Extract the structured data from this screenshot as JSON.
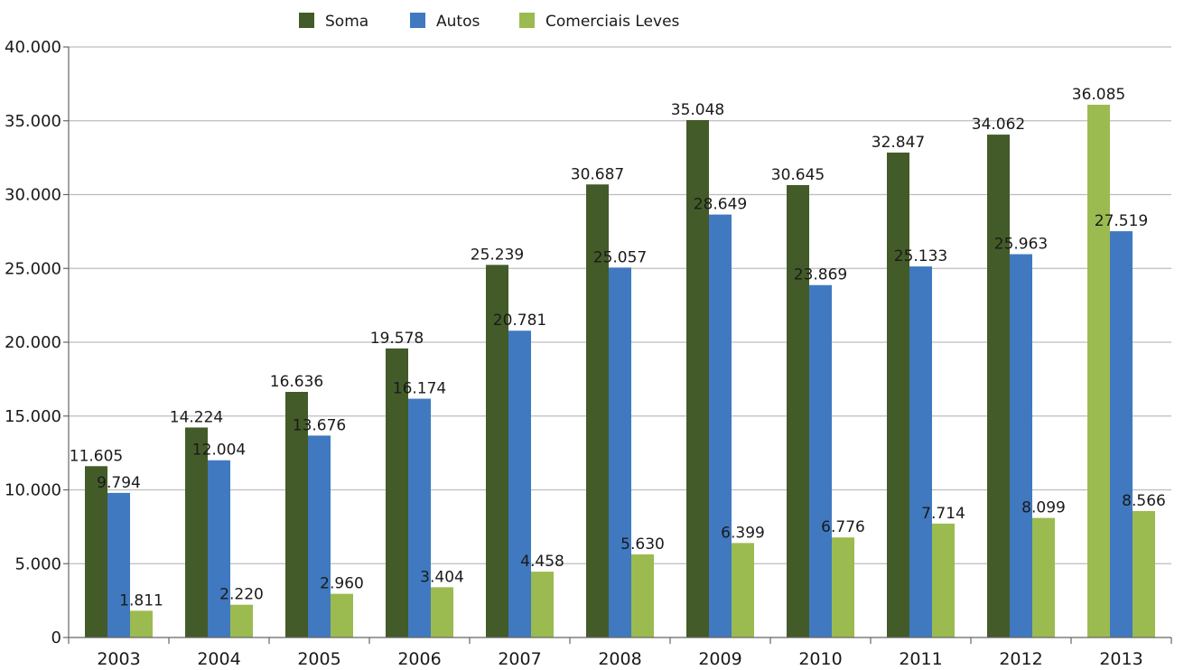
{
  "chart_data": {
    "type": "bar",
    "categories": [
      "2003",
      "2004",
      "2005",
      "2006",
      "2007",
      "2008",
      "2009",
      "2010",
      "2011",
      "2012",
      "2013"
    ],
    "series": [
      {
        "name": "Soma",
        "color": "#435b28",
        "values": [
          11605,
          14224,
          16636,
          19578,
          25239,
          30687,
          35048,
          30645,
          32847,
          34062,
          36085
        ],
        "labels": [
          "11.605",
          "14.224",
          "16.636",
          "19.578",
          "25.239",
          "30.687",
          "35.048",
          "30.645",
          "32.847",
          "34.062",
          "36.085"
        ],
        "value_colors": [
          "#435b28",
          "#435b28",
          "#435b28",
          "#435b28",
          "#435b28",
          "#435b28",
          "#435b28",
          "#435b28",
          "#435b28",
          "#435b28",
          "#9bbb50"
        ]
      },
      {
        "name": "Autos",
        "color": "#4079c0",
        "values": [
          9794,
          12004,
          13676,
          16174,
          20781,
          25057,
          28649,
          23869,
          25133,
          25963,
          27519
        ],
        "labels": [
          "9.794",
          "12.004",
          "13.676",
          "16.174",
          "20.781",
          "25.057",
          "28.649",
          "23.869",
          "25.133",
          "25.963",
          "27.519"
        ]
      },
      {
        "name": "Comerciais Leves",
        "color": "#9bbb50",
        "values": [
          1811,
          2220,
          2960,
          3404,
          4458,
          5630,
          6399,
          6776,
          7714,
          8099,
          8566
        ],
        "labels": [
          "1.811",
          "2.220",
          "2.960",
          "3.404",
          "4.458",
          "5.630",
          "6.399",
          "6.776",
          "7.714",
          "8.099",
          "8.566"
        ]
      }
    ],
    "ylim": [
      0,
      40000
    ],
    "yticks": [
      0,
      5000,
      10000,
      15000,
      20000,
      25000,
      30000,
      35000,
      40000
    ],
    "ytick_labels": [
      "0",
      "5.000",
      "10.000",
      "15.000",
      "20.000",
      "25.000",
      "30.000",
      "35.000",
      "40.000"
    ],
    "grid": true,
    "legend_position": "top-center",
    "title": "",
    "xlabel": "",
    "ylabel": ""
  }
}
